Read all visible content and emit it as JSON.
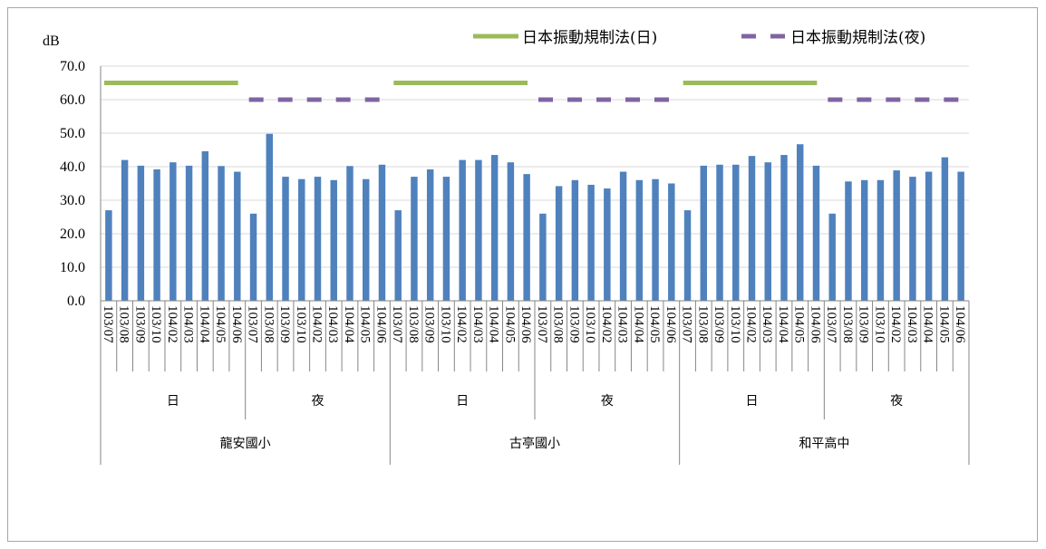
{
  "chart_data": {
    "type": "bar",
    "ylabel": "dB",
    "ylim": [
      0,
      70
    ],
    "yticks": [
      "0.0",
      "10.0",
      "20.0",
      "30.0",
      "40.0",
      "50.0",
      "60.0",
      "70.0"
    ],
    "grid": true,
    "legend_position": "top-right",
    "bar_color": "#4f81bd",
    "groups": [
      {
        "name": "龍安國小",
        "subgroups": [
          {
            "name": "日",
            "dates": [
              "103/07",
              "103/08",
              "103/09",
              "103/10",
              "104/02",
              "104/03",
              "104/04",
              "104/05",
              "104/06"
            ],
            "values": [
              27.0,
              42.0,
              40.3,
              39.2,
              41.3,
              40.3,
              44.6,
              40.2,
              38.5
            ]
          },
          {
            "name": "夜",
            "dates": [
              "103/07",
              "103/08",
              "103/09",
              "103/10",
              "104/02",
              "104/03",
              "104/04",
              "104/05",
              "104/06"
            ],
            "values": [
              26.0,
              49.8,
              37.0,
              36.3,
              37.0,
              36.0,
              40.2,
              36.3,
              40.6
            ]
          }
        ]
      },
      {
        "name": "古亭國小",
        "subgroups": [
          {
            "name": "日",
            "dates": [
              "103/07",
              "103/08",
              "103/09",
              "103/10",
              "104/02",
              "104/03",
              "104/04",
              "104/05",
              "104/06"
            ],
            "values": [
              27.0,
              37.0,
              39.2,
              37.0,
              42.0,
              42.0,
              43.5,
              41.3,
              37.8
            ]
          },
          {
            "name": "夜",
            "dates": [
              "103/07",
              "103/08",
              "103/09",
              "103/10",
              "104/02",
              "104/03",
              "104/04",
              "104/05",
              "104/06"
            ],
            "values": [
              26.0,
              34.2,
              36.0,
              34.6,
              33.5,
              38.5,
              36.0,
              36.3,
              35.0
            ]
          }
        ]
      },
      {
        "name": "和平高中",
        "subgroups": [
          {
            "name": "日",
            "dates": [
              "103/07",
              "103/08",
              "103/09",
              "103/10",
              "104/02",
              "104/03",
              "104/04",
              "104/05",
              "104/06"
            ],
            "values": [
              27.0,
              40.3,
              40.6,
              40.6,
              43.2,
              41.3,
              43.5,
              46.7,
              40.3
            ]
          },
          {
            "name": "夜",
            "dates": [
              "103/07",
              "103/08",
              "103/09",
              "103/10",
              "104/02",
              "104/03",
              "104/04",
              "104/05",
              "104/06"
            ],
            "values": [
              26.0,
              35.6,
              36.0,
              36.0,
              38.9,
              37.0,
              38.5,
              42.8,
              38.5
            ]
          }
        ]
      }
    ],
    "reference_lines": [
      {
        "name": "日本振動規制法(日)",
        "value": 65,
        "applies_to": "日",
        "color": "#9bbb59",
        "style": "solid"
      },
      {
        "name": "日本振動規制法(夜)",
        "value": 60,
        "applies_to": "夜",
        "color": "#8064a2",
        "style": "dashed"
      }
    ]
  }
}
